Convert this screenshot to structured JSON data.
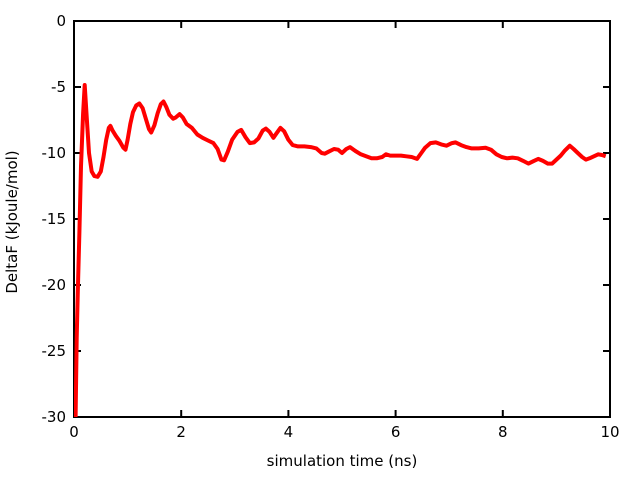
{
  "figure": {
    "background_color": "#ffffff",
    "axis_color": "#000000",
    "text_color": "#000000"
  },
  "chart_data": {
    "type": "line",
    "title": "",
    "xlabel": "simulation time (ns)",
    "ylabel": "DeltaF (kJoule/mol)",
    "xlim": [
      0,
      10
    ],
    "ylim": [
      -30,
      0
    ],
    "x_ticks": [
      0,
      2,
      4,
      6,
      8,
      10
    ],
    "y_ticks": [
      0,
      -5,
      -10,
      -15,
      -20,
      -25,
      -30
    ],
    "grid": false,
    "legend_position": "none",
    "tick_style": "inward-mirrored",
    "series": [
      {
        "name": "DeltaF",
        "color": "#ff0000",
        "line_width": 4,
        "x": [
          0.03,
          0.05,
          0.07,
          0.1,
          0.13,
          0.17,
          0.2,
          0.24,
          0.28,
          0.33,
          0.38,
          0.44,
          0.5,
          0.55,
          0.6,
          0.65,
          0.68,
          0.72,
          0.78,
          0.85,
          0.92,
          0.96,
          1.0,
          1.05,
          1.1,
          1.16,
          1.22,
          1.28,
          1.34,
          1.4,
          1.44,
          1.5,
          1.56,
          1.62,
          1.67,
          1.72,
          1.78,
          1.85,
          1.9,
          1.97,
          2.03,
          2.1,
          2.2,
          2.3,
          2.4,
          2.5,
          2.6,
          2.68,
          2.75,
          2.8,
          2.87,
          2.95,
          3.05,
          3.12,
          3.2,
          3.28,
          3.36,
          3.44,
          3.52,
          3.58,
          3.65,
          3.72,
          3.78,
          3.85,
          3.92,
          4.0,
          4.08,
          4.18,
          4.3,
          4.42,
          4.52,
          4.62,
          4.68,
          4.75,
          4.85,
          4.93,
          5.0,
          5.08,
          5.15,
          5.25,
          5.35,
          5.45,
          5.55,
          5.65,
          5.75,
          5.82,
          5.9,
          6.0,
          6.1,
          6.2,
          6.3,
          6.4,
          6.48,
          6.55,
          6.65,
          6.75,
          6.85,
          6.95,
          7.05,
          7.12,
          7.22,
          7.32,
          7.42,
          7.55,
          7.68,
          7.78,
          7.88,
          7.98,
          8.08,
          8.18,
          8.28,
          8.38,
          8.48,
          8.58,
          8.66,
          8.75,
          8.84,
          8.92,
          9.0,
          9.08,
          9.16,
          9.25,
          9.32,
          9.4,
          9.48,
          9.55,
          9.62,
          9.7,
          9.78,
          9.85,
          9.92
        ],
        "y": [
          -30,
          -24,
          -20.5,
          -16,
          -11,
          -7,
          -4.85,
          -7.5,
          -10,
          -11.4,
          -11.75,
          -11.8,
          -11.4,
          -10.3,
          -9.0,
          -8.1,
          -7.95,
          -8.3,
          -8.7,
          -9.1,
          -9.6,
          -9.75,
          -9.0,
          -7.8,
          -6.9,
          -6.4,
          -6.25,
          -6.6,
          -7.4,
          -8.2,
          -8.45,
          -7.9,
          -7.0,
          -6.3,
          -6.1,
          -6.5,
          -7.1,
          -7.4,
          -7.3,
          -7.05,
          -7.3,
          -7.8,
          -8.1,
          -8.6,
          -8.85,
          -9.05,
          -9.25,
          -9.7,
          -10.5,
          -10.55,
          -9.9,
          -9.0,
          -8.4,
          -8.25,
          -8.8,
          -9.25,
          -9.2,
          -8.9,
          -8.3,
          -8.15,
          -8.4,
          -8.85,
          -8.5,
          -8.1,
          -8.35,
          -9.0,
          -9.4,
          -9.5,
          -9.5,
          -9.55,
          -9.65,
          -10.0,
          -10.05,
          -9.9,
          -9.7,
          -9.75,
          -10.0,
          -9.7,
          -9.55,
          -9.85,
          -10.1,
          -10.25,
          -10.4,
          -10.4,
          -10.3,
          -10.1,
          -10.2,
          -10.2,
          -10.2,
          -10.25,
          -10.3,
          -10.45,
          -10.0,
          -9.6,
          -9.25,
          -9.2,
          -9.35,
          -9.45,
          -9.25,
          -9.2,
          -9.4,
          -9.55,
          -9.65,
          -9.65,
          -9.6,
          -9.75,
          -10.1,
          -10.3,
          -10.4,
          -10.35,
          -10.4,
          -10.6,
          -10.8,
          -10.6,
          -10.45,
          -10.6,
          -10.8,
          -10.8,
          -10.5,
          -10.2,
          -9.8,
          -9.45,
          -9.7,
          -10.0,
          -10.3,
          -10.5,
          -10.4,
          -10.25,
          -10.1,
          -10.15,
          -10.25
        ]
      }
    ]
  }
}
